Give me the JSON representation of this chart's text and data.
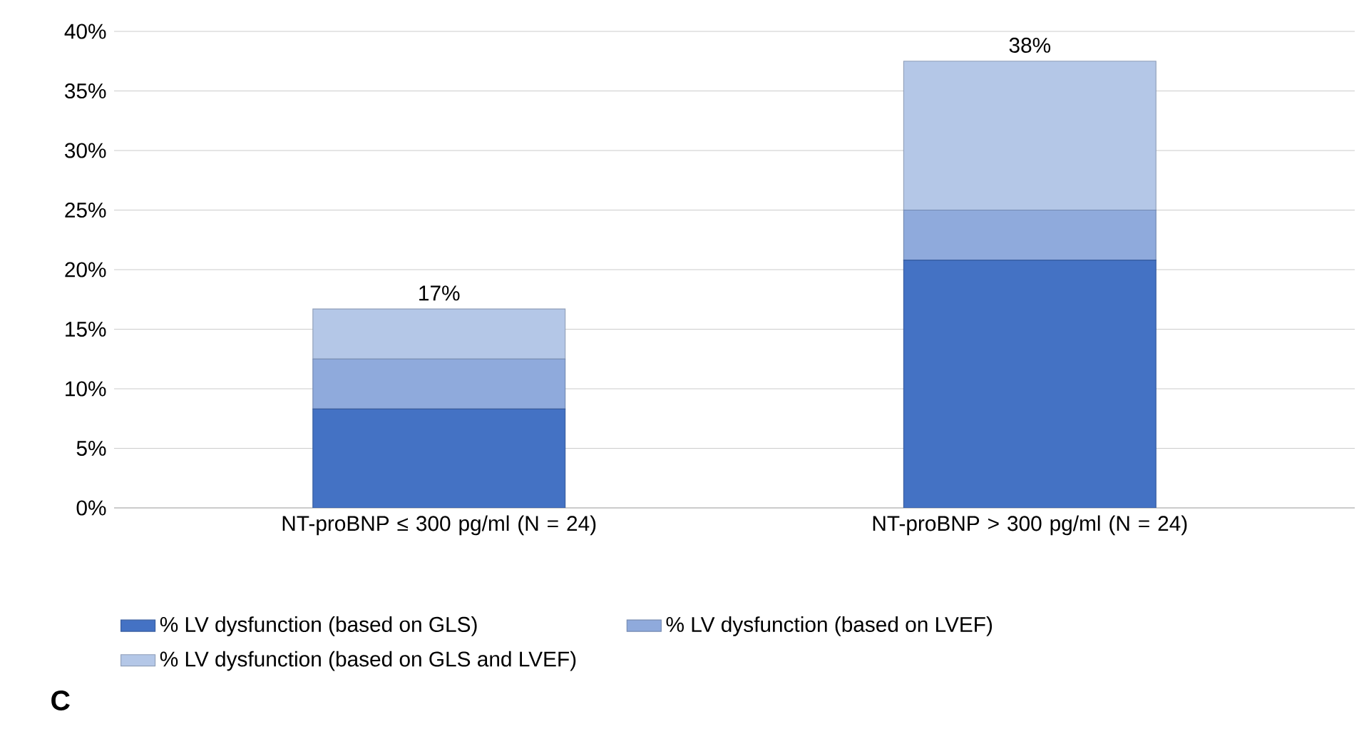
{
  "chart_data": {
    "type": "bar",
    "stacked": true,
    "categories": [
      "NT-proBNP ≤ 300 pg/ml (N = 24)",
      "NT-proBNP > 300 pg/ml (N = 24)"
    ],
    "series": [
      {
        "name": "% LV dysfunction (based on GLS)",
        "color": "#4472c4",
        "values": [
          8.3,
          20.8
        ]
      },
      {
        "name": "% LV dysfunction (based on LVEF)",
        "color": "#8faadc",
        "values": [
          4.2,
          4.2
        ]
      },
      {
        "name": "% LV dysfunction (based on GLS and LVEF)",
        "color": "#b4c7e7",
        "values": [
          4.2,
          12.5
        ]
      }
    ],
    "totals": [
      "17%",
      "38%"
    ],
    "ylim": [
      0,
      40
    ],
    "yticks": [
      {
        "value": 0,
        "label": "0%"
      },
      {
        "value": 5,
        "label": "5%"
      },
      {
        "value": 10,
        "label": "10%"
      },
      {
        "value": 15,
        "label": "15%"
      },
      {
        "value": 20,
        "label": "20%"
      },
      {
        "value": 25,
        "label": "25%"
      },
      {
        "value": 30,
        "label": "30%"
      },
      {
        "value": 35,
        "label": "35%"
      },
      {
        "value": 40,
        "label": "40%"
      }
    ],
    "grid": "y",
    "legend": "bottom",
    "annotations": [
      "C"
    ]
  }
}
